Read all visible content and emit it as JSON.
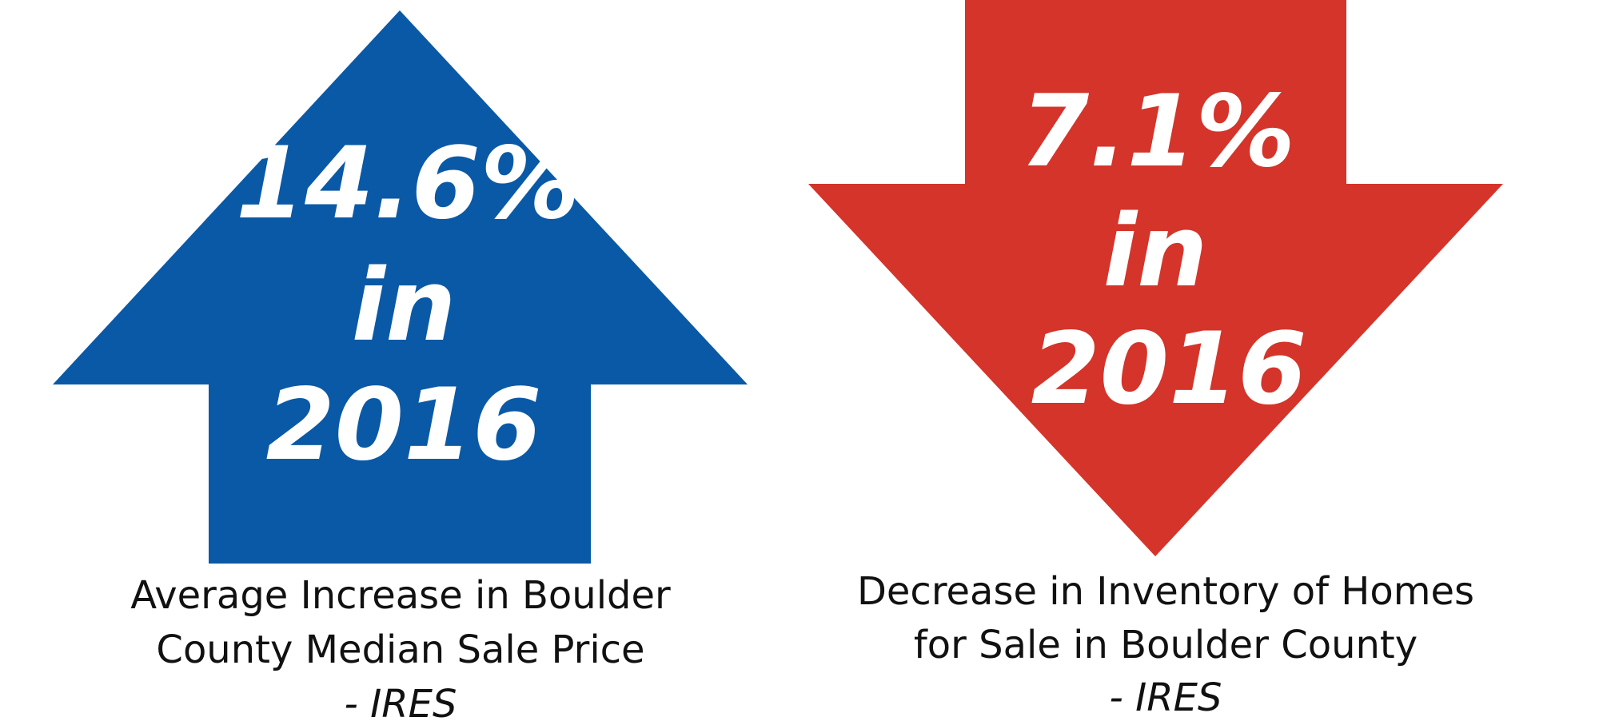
{
  "panels": [
    {
      "headline": [
        "14.6%",
        "in",
        "2016"
      ],
      "caption": [
        "Average Increase in Boulder",
        "County Median Sale Price"
      ],
      "source": "- IRES"
    },
    {
      "headline": [
        "7.1%",
        "in",
        "2016"
      ],
      "caption": [
        "Decrease in Inventory of Homes",
        "for Sale in Boulder County"
      ],
      "source": "- IRES"
    }
  ]
}
